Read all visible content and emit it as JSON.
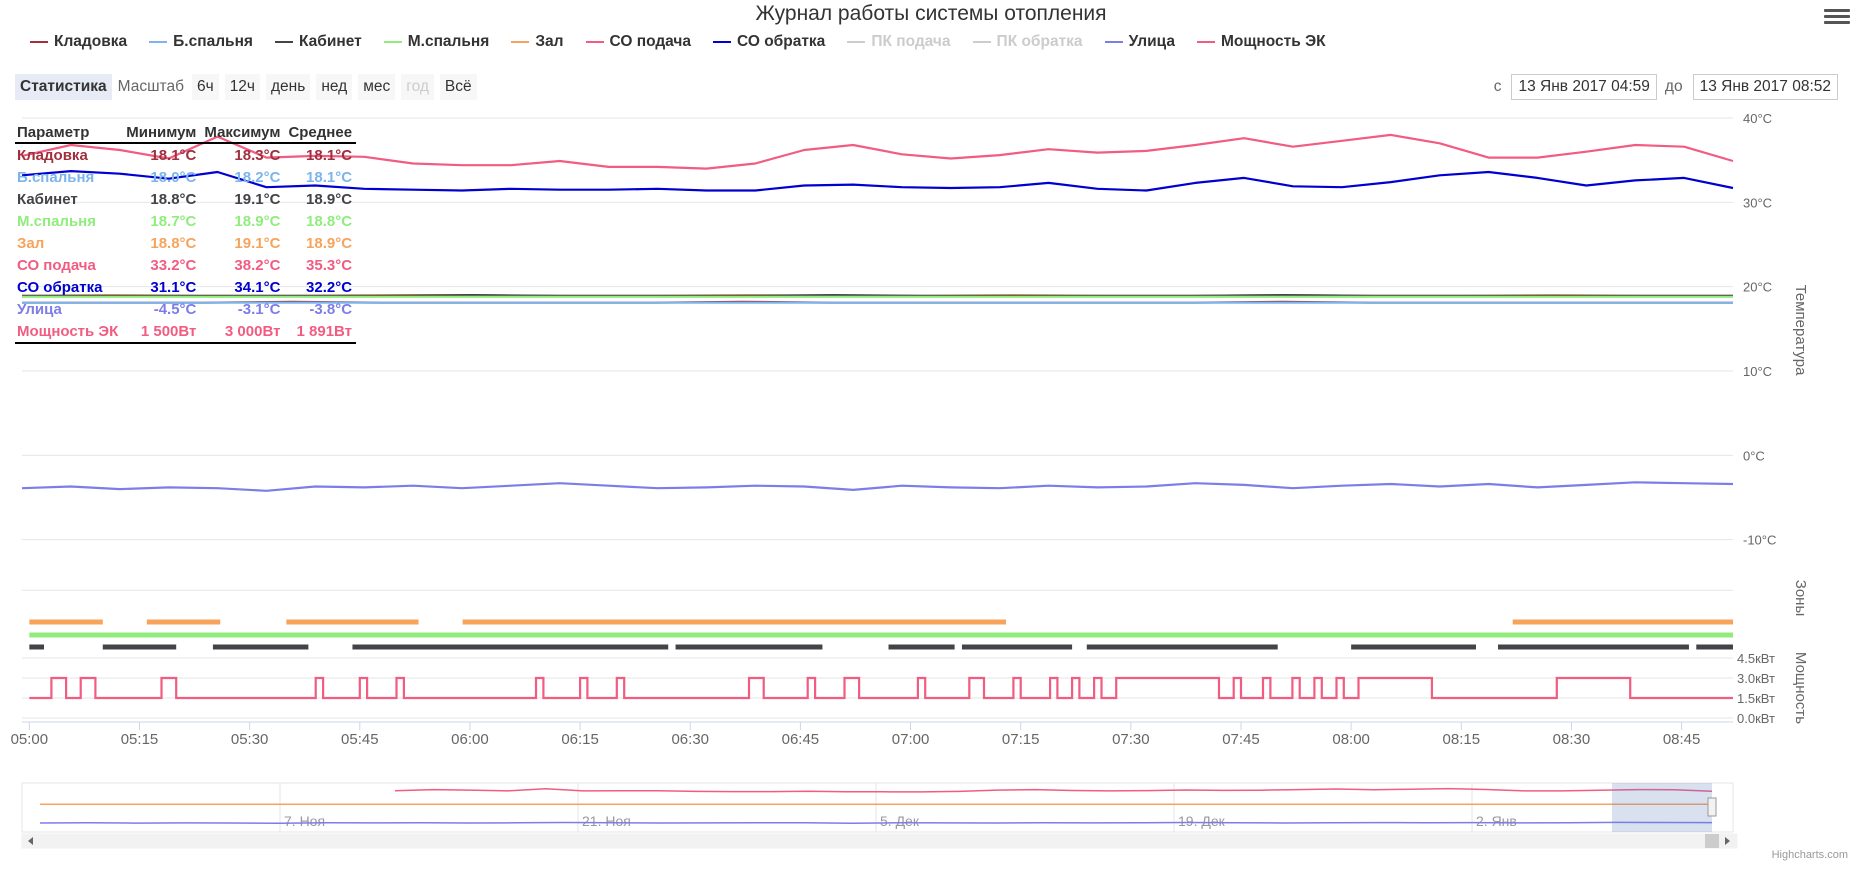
{
  "title": "Журнал работы системы отопления",
  "legend": [
    {
      "name": "Кладовка",
      "color": "#a02f3f",
      "visible": true
    },
    {
      "name": "Б.спальня",
      "color": "#7cb5ec",
      "visible": true
    },
    {
      "name": "Кабинет",
      "color": "#434348",
      "visible": true
    },
    {
      "name": "М.спальня",
      "color": "#90ed7d",
      "visible": true
    },
    {
      "name": "Зал",
      "color": "#f7a35c",
      "visible": true
    },
    {
      "name": "СО подача",
      "color": "#f15c80",
      "visible": true
    },
    {
      "name": "СО обратка",
      "color": "#0000d0",
      "visible": true
    },
    {
      "name": "ПК подача",
      "color": "#cccccc",
      "visible": false
    },
    {
      "name": "ПК обратка",
      "color": "#cccccc",
      "visible": false
    },
    {
      "name": "Улица",
      "color": "#7d7de8",
      "visible": true
    },
    {
      "name": "Мощность ЭК",
      "color": "#f15c80",
      "visible": true
    }
  ],
  "range_selector": {
    "stats_button": "Статистика",
    "label": "Масштаб",
    "buttons": [
      "6ч",
      "12ч",
      "день",
      "нед",
      "мес",
      "год",
      "Всё"
    ],
    "disabled_button": "год",
    "from_label": "с",
    "from": "13 Янв 2017 04:59",
    "to_label": "до",
    "to": "13 Янв 2017 08:52"
  },
  "stats": {
    "headers": [
      "Параметр",
      "Минимум",
      "Максимум",
      "Среднее"
    ],
    "rows": [
      {
        "name": "Кладовка",
        "min": "18.1°C",
        "max": "18.3°C",
        "avg": "18.1°C",
        "color": "#a02f3f"
      },
      {
        "name": "Б.спальня",
        "min": "18.0°C",
        "max": "18.2°C",
        "avg": "18.1°C",
        "color": "#7cb5ec"
      },
      {
        "name": "Кабинет",
        "min": "18.8°C",
        "max": "19.1°C",
        "avg": "18.9°C",
        "color": "#434348"
      },
      {
        "name": "М.спальня",
        "min": "18.7°C",
        "max": "18.9°C",
        "avg": "18.8°C",
        "color": "#90ed7d"
      },
      {
        "name": "Зал",
        "min": "18.8°C",
        "max": "19.1°C",
        "avg": "18.9°C",
        "color": "#f7a35c"
      },
      {
        "name": "СО подача",
        "min": "33.2°C",
        "max": "38.2°C",
        "avg": "35.3°C",
        "color": "#f15c80"
      },
      {
        "name": "СО обратка",
        "min": "31.1°C",
        "max": "34.1°C",
        "avg": "32.2°C",
        "color": "#0000d0"
      },
      {
        "name": "Улица",
        "min": "-4.5°C",
        "max": "-3.1°C",
        "avg": "-3.8°C",
        "color": "#7d7de8"
      },
      {
        "name": "Мощность ЭК",
        "min": "1 500Вт",
        "max": "3 000Вт",
        "avg": "1 891Вт",
        "color": "#f15c80"
      }
    ]
  },
  "chart_data": {
    "type": "line",
    "x_ticks": [
      "05:00",
      "05:15",
      "05:30",
      "05:45",
      "06:00",
      "06:15",
      "06:30",
      "06:45",
      "07:00",
      "07:15",
      "07:30",
      "07:45",
      "08:00",
      "08:15",
      "08:30",
      "08:45"
    ],
    "x_range": [
      "04:59",
      "08:52"
    ],
    "temperature_axis": {
      "title": "Температура",
      "ticks": [
        "40°C",
        "30°C",
        "20°C",
        "10°C",
        "0°C",
        "-10°C"
      ],
      "range": [
        -20,
        40
      ]
    },
    "zones_axis": {
      "title": "Зоны"
    },
    "power_axis": {
      "title": "Мощность",
      "ticks": [
        "4.5кВт",
        "3.0кВт",
        "1.5кВт",
        "0.0кВт"
      ],
      "range": [
        0,
        4.5
      ]
    },
    "series": [
      {
        "name": "СО подача",
        "values": [
          35.5,
          36.8,
          36.2,
          35.2,
          37.8,
          35.3,
          35.5,
          35.4,
          34.6,
          34.4,
          34.4,
          34.9,
          34.2,
          34.2,
          34.0,
          34.6,
          36.2,
          36.8,
          35.7,
          35.2,
          35.6,
          36.3,
          35.9,
          36.1,
          36.8,
          37.6,
          36.6,
          37.3,
          38.0,
          37.0,
          35.3,
          35.3,
          36.0,
          36.8,
          36.6,
          34.9
        ]
      },
      {
        "name": "СО обратка",
        "values": [
          33.2,
          33.7,
          33.4,
          32.8,
          33.6,
          31.8,
          32.0,
          31.6,
          31.5,
          31.4,
          31.6,
          31.5,
          31.5,
          31.6,
          31.4,
          31.4,
          32.0,
          32.1,
          31.8,
          31.7,
          31.8,
          32.3,
          31.6,
          31.4,
          32.3,
          32.9,
          31.9,
          31.8,
          32.4,
          33.2,
          33.6,
          32.9,
          32.0,
          32.6,
          32.9,
          31.7
        ]
      },
      {
        "name": "Зал",
        "values": [
          18.9,
          19.0,
          18.9,
          18.9,
          19.0,
          19.0,
          18.9,
          18.9,
          19.0,
          18.9,
          18.9,
          19.0,
          18.9,
          18.9,
          19.0,
          18.9,
          18.9,
          19.0,
          18.9,
          18.9
        ]
      },
      {
        "name": "Кабинет",
        "values": [
          18.9,
          18.9,
          18.9,
          18.9,
          18.9,
          19.0,
          18.9,
          18.9,
          18.9,
          19.0,
          18.9,
          18.9,
          18.9,
          18.9,
          19.0,
          18.9,
          18.9,
          18.9,
          18.9,
          18.9
        ]
      },
      {
        "name": "М.спальня",
        "values": [
          18.8,
          18.8,
          18.8,
          18.8,
          18.8,
          18.8,
          18.8,
          18.8,
          18.8,
          18.8,
          18.8,
          18.8,
          18.8,
          18.8,
          18.8,
          18.8,
          18.8,
          18.8,
          18.8,
          18.8
        ]
      },
      {
        "name": "Кладовка",
        "values": [
          18.1,
          18.1,
          18.1,
          18.2,
          18.1,
          18.1,
          18.1,
          18.1,
          18.2,
          18.1,
          18.1,
          18.1,
          18.1,
          18.1,
          18.2,
          18.1,
          18.1,
          18.1,
          18.1,
          18.1
        ]
      },
      {
        "name": "Б.спальня",
        "values": [
          18.1,
          18.1,
          18.1,
          18.1,
          18.1,
          18.1,
          18.1,
          18.1,
          18.1,
          18.1,
          18.1,
          18.1,
          18.1,
          18.1,
          18.1,
          18.1,
          18.1,
          18.1,
          18.1,
          18.1
        ]
      },
      {
        "name": "Улица",
        "values": [
          -3.9,
          -3.7,
          -4.0,
          -3.8,
          -3.9,
          -4.2,
          -3.7,
          -3.8,
          -3.6,
          -3.9,
          -3.6,
          -3.3,
          -3.6,
          -3.9,
          -3.8,
          -3.6,
          -3.7,
          -4.1,
          -3.6,
          -3.8,
          -3.9,
          -3.6,
          -3.8,
          -3.7,
          -3.3,
          -3.5,
          -3.9,
          -3.6,
          -3.4,
          -3.7,
          -3.4,
          -3.8,
          -3.5,
          -3.2,
          -3.3,
          -3.4
        ]
      }
    ],
    "zones": {
      "Зал": [
        [
          "05:00",
          "05:10"
        ],
        [
          "05:16",
          "05:26"
        ],
        [
          "05:35",
          "05:53"
        ],
        [
          "05:59",
          "07:13"
        ],
        [
          "08:22",
          "08:52"
        ]
      ],
      "М.спальня": [
        [
          "05:00",
          "08:52"
        ]
      ],
      "Кабинет": [
        [
          "05:00",
          "05:02"
        ],
        [
          "05:10",
          "05:20"
        ],
        [
          "05:25",
          "05:38"
        ],
        [
          "05:44",
          "06:27"
        ],
        [
          "06:28",
          "06:48"
        ],
        [
          "06:57",
          "07:06"
        ],
        [
          "07:07",
          "07:22"
        ],
        [
          "07:24",
          "07:50"
        ],
        [
          "08:00",
          "08:17"
        ],
        [
          "08:20",
          "08:46"
        ],
        [
          "08:47",
          "08:52"
        ]
      ]
    },
    "power_ek": [
      [
        "05:00",
        1.5
      ],
      [
        "05:03",
        3.0
      ],
      [
        "05:05",
        1.5
      ],
      [
        "05:07",
        3.0
      ],
      [
        "05:09",
        1.5
      ],
      [
        "05:18",
        3.0
      ],
      [
        "05:20",
        1.5
      ],
      [
        "05:39",
        3.0
      ],
      [
        "05:40",
        1.5
      ],
      [
        "05:45",
        3.0
      ],
      [
        "05:46",
        1.5
      ],
      [
        "05:50",
        3.0
      ],
      [
        "05:51",
        1.5
      ],
      [
        "06:09",
        3.0
      ],
      [
        "06:10",
        1.5
      ],
      [
        "06:15",
        3.0
      ],
      [
        "06:16",
        1.5
      ],
      [
        "06:20",
        3.0
      ],
      [
        "06:21",
        1.5
      ],
      [
        "06:38",
        3.0
      ],
      [
        "06:40",
        1.5
      ],
      [
        "06:46",
        3.0
      ],
      [
        "06:47",
        1.5
      ],
      [
        "06:51",
        3.0
      ],
      [
        "06:53",
        1.5
      ],
      [
        "07:01",
        3.0
      ],
      [
        "07:02",
        1.5
      ],
      [
        "07:08",
        3.0
      ],
      [
        "07:10",
        1.5
      ],
      [
        "07:14",
        3.0
      ],
      [
        "07:15",
        1.5
      ],
      [
        "07:19",
        3.0
      ],
      [
        "07:20",
        1.5
      ],
      [
        "07:22",
        3.0
      ],
      [
        "07:23",
        1.5
      ],
      [
        "07:25",
        3.0
      ],
      [
        "07:26",
        1.5
      ],
      [
        "07:28",
        3.0
      ],
      [
        "07:42",
        1.5
      ],
      [
        "07:44",
        3.0
      ],
      [
        "07:45",
        1.5
      ],
      [
        "07:48",
        3.0
      ],
      [
        "07:49",
        1.5
      ],
      [
        "07:52",
        3.0
      ],
      [
        "07:53",
        1.5
      ],
      [
        "07:55",
        3.0
      ],
      [
        "07:56",
        1.5
      ],
      [
        "07:58",
        3.0
      ],
      [
        "07:59",
        1.5
      ],
      [
        "08:01",
        3.0
      ],
      [
        "08:11",
        1.5
      ],
      [
        "08:28",
        3.0
      ],
      [
        "08:38",
        1.5
      ],
      [
        "08:52",
        1.5
      ]
    ],
    "navigator": {
      "ticks": [
        "7. Ноя",
        "21. Ноя",
        "5. Дек",
        "19. Дек",
        "2. Янв"
      ]
    }
  },
  "credits": "Highcharts.com"
}
